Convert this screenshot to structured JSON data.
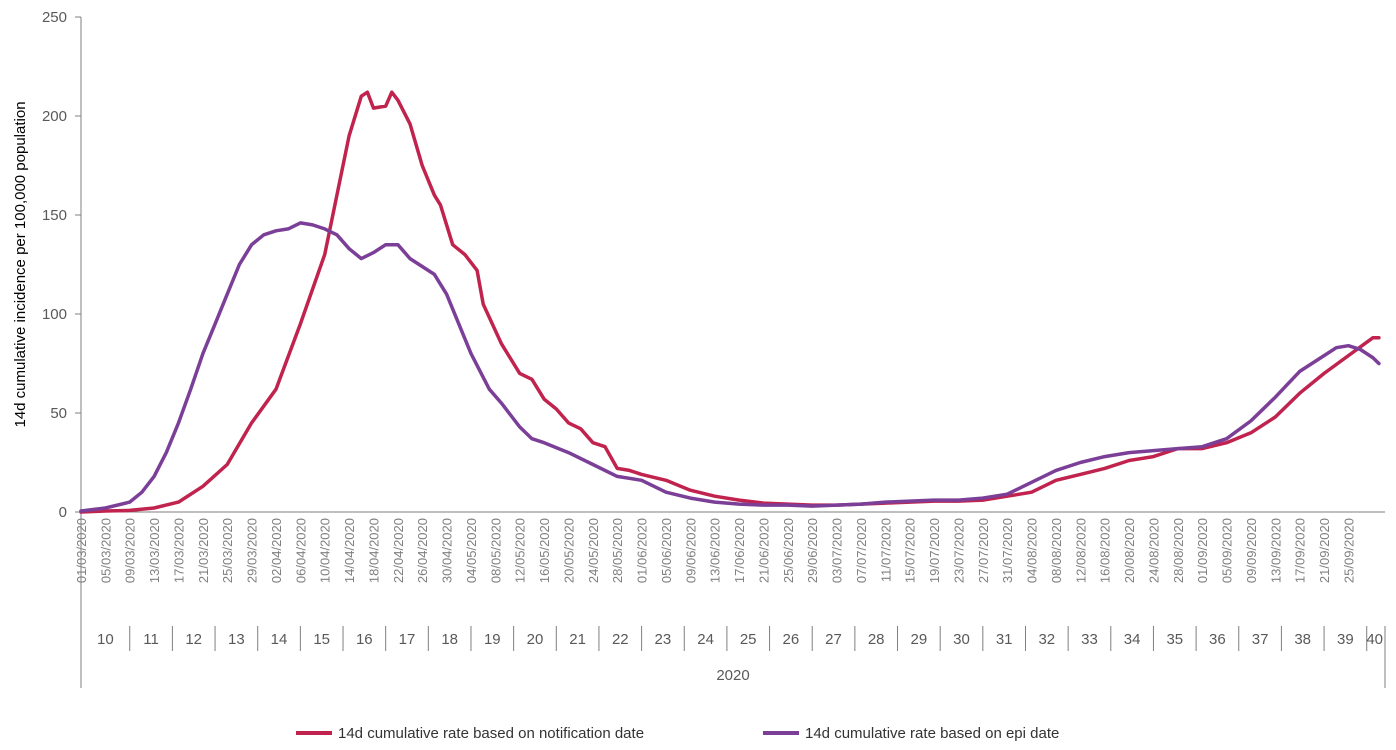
{
  "chart_data": {
    "type": "line",
    "title": "",
    "ylabel": "14d cumulative incidence per 100,000 population",
    "ylim": [
      0,
      250
    ],
    "yticks": [
      "0",
      "50",
      "100",
      "150",
      "200",
      "250"
    ],
    "date_labels": [
      "01/03/2020",
      "05/03/2020",
      "09/03/2020",
      "13/03/2020",
      "17/03/2020",
      "21/03/2020",
      "25/03/2020",
      "29/03/2020",
      "02/04/2020",
      "06/04/2020",
      "10/04/2020",
      "14/04/2020",
      "18/04/2020",
      "22/04/2020",
      "26/04/2020",
      "30/04/2020",
      "04/05/2020",
      "08/05/2020",
      "12/05/2020",
      "16/05/2020",
      "20/05/2020",
      "24/05/2020",
      "28/05/2020",
      "01/06/2020",
      "05/06/2020",
      "09/06/2020",
      "13/06/2020",
      "17/06/2020",
      "21/06/2020",
      "25/06/2020",
      "29/06/2020",
      "03/07/2020",
      "07/07/2020",
      "11/07/2020",
      "15/07/2020",
      "19/07/2020",
      "23/07/2020",
      "27/07/2020",
      "31/07/2020",
      "04/08/2020",
      "08/08/2020",
      "12/08/2020",
      "16/08/2020",
      "20/08/2020",
      "24/08/2020",
      "28/08/2020",
      "01/09/2020",
      "05/09/2020",
      "09/09/2020",
      "13/09/2020",
      "17/09/2020",
      "21/09/2020",
      "25/09/2020"
    ],
    "weeks": [
      "10",
      "11",
      "12",
      "13",
      "14",
      "15",
      "16",
      "17",
      "18",
      "19",
      "20",
      "21",
      "22",
      "23",
      "24",
      "25",
      "26",
      "27",
      "28",
      "29",
      "30",
      "31",
      "32",
      "33",
      "34",
      "35",
      "36",
      "37",
      "38",
      "39",
      "40"
    ],
    "year": "2020",
    "x_start": "01/03/2020",
    "x_end": "01/10/2020",
    "grid": false,
    "legend_position": "bottom",
    "series": [
      {
        "name": "14d cumulative rate based on notification date",
        "color": "#c0234e",
        "points": [
          [
            "01/03/2020",
            0
          ],
          [
            "05/03/2020",
            0.5
          ],
          [
            "09/03/2020",
            0.8
          ],
          [
            "13/03/2020",
            2
          ],
          [
            "17/03/2020",
            5
          ],
          [
            "21/03/2020",
            13
          ],
          [
            "25/03/2020",
            24
          ],
          [
            "29/03/2020",
            45
          ],
          [
            "02/04/2020",
            62
          ],
          [
            "06/04/2020",
            95
          ],
          [
            "10/04/2020",
            130
          ],
          [
            "12/04/2020",
            160
          ],
          [
            "14/04/2020",
            190
          ],
          [
            "16/04/2020",
            210
          ],
          [
            "17/04/2020",
            212
          ],
          [
            "18/04/2020",
            204
          ],
          [
            "20/04/2020",
            205
          ],
          [
            "21/04/2020",
            212
          ],
          [
            "22/04/2020",
            208
          ],
          [
            "24/04/2020",
            196
          ],
          [
            "26/04/2020",
            175
          ],
          [
            "28/04/2020",
            160
          ],
          [
            "29/04/2020",
            155
          ],
          [
            "01/05/2020",
            135
          ],
          [
            "03/05/2020",
            130
          ],
          [
            "05/05/2020",
            122
          ],
          [
            "06/05/2020",
            105
          ],
          [
            "09/05/2020",
            85
          ],
          [
            "12/05/2020",
            70
          ],
          [
            "14/05/2020",
            67
          ],
          [
            "16/05/2020",
            57
          ],
          [
            "18/05/2020",
            52
          ],
          [
            "20/05/2020",
            45
          ],
          [
            "22/05/2020",
            42
          ],
          [
            "24/05/2020",
            35
          ],
          [
            "26/05/2020",
            33
          ],
          [
            "28/05/2020",
            22
          ],
          [
            "30/05/2020",
            21
          ],
          [
            "01/06/2020",
            19
          ],
          [
            "05/06/2020",
            16
          ],
          [
            "09/06/2020",
            11
          ],
          [
            "13/06/2020",
            8
          ],
          [
            "17/06/2020",
            6
          ],
          [
            "21/06/2020",
            4.5
          ],
          [
            "25/06/2020",
            4
          ],
          [
            "29/06/2020",
            3.5
          ],
          [
            "03/07/2020",
            3.5
          ],
          [
            "07/07/2020",
            4
          ],
          [
            "11/07/2020",
            4.5
          ],
          [
            "15/07/2020",
            5
          ],
          [
            "19/07/2020",
            5.5
          ],
          [
            "23/07/2020",
            5.5
          ],
          [
            "27/07/2020",
            6
          ],
          [
            "31/07/2020",
            8
          ],
          [
            "04/08/2020",
            10
          ],
          [
            "08/08/2020",
            16
          ],
          [
            "12/08/2020",
            19
          ],
          [
            "16/08/2020",
            22
          ],
          [
            "20/08/2020",
            26
          ],
          [
            "24/08/2020",
            28
          ],
          [
            "28/08/2020",
            32
          ],
          [
            "01/09/2020",
            32
          ],
          [
            "05/09/2020",
            35
          ],
          [
            "09/09/2020",
            40
          ],
          [
            "13/09/2020",
            48
          ],
          [
            "17/09/2020",
            60
          ],
          [
            "21/09/2020",
            70
          ],
          [
            "25/09/2020",
            79
          ],
          [
            "29/09/2020",
            88
          ],
          [
            "30/09/2020",
            88
          ]
        ]
      },
      {
        "name": "14d cumulative rate based on epi date",
        "color": "#7b3f98",
        "points": [
          [
            "01/03/2020",
            0.5
          ],
          [
            "05/03/2020",
            2
          ],
          [
            "09/03/2020",
            5
          ],
          [
            "11/03/2020",
            10
          ],
          [
            "13/03/2020",
            18
          ],
          [
            "15/03/2020",
            30
          ],
          [
            "17/03/2020",
            45
          ],
          [
            "19/03/2020",
            62
          ],
          [
            "21/03/2020",
            80
          ],
          [
            "23/03/2020",
            95
          ],
          [
            "25/03/2020",
            110
          ],
          [
            "27/03/2020",
            125
          ],
          [
            "29/03/2020",
            135
          ],
          [
            "31/03/2020",
            140
          ],
          [
            "02/04/2020",
            142
          ],
          [
            "04/04/2020",
            143
          ],
          [
            "06/04/2020",
            146
          ],
          [
            "08/04/2020",
            145
          ],
          [
            "10/04/2020",
            143
          ],
          [
            "12/04/2020",
            140
          ],
          [
            "14/04/2020",
            133
          ],
          [
            "16/04/2020",
            128
          ],
          [
            "18/04/2020",
            131
          ],
          [
            "20/04/2020",
            135
          ],
          [
            "22/04/2020",
            135
          ],
          [
            "24/04/2020",
            128
          ],
          [
            "26/04/2020",
            124
          ],
          [
            "28/04/2020",
            120
          ],
          [
            "30/04/2020",
            110
          ],
          [
            "02/05/2020",
            95
          ],
          [
            "04/05/2020",
            80
          ],
          [
            "07/05/2020",
            62
          ],
          [
            "09/05/2020",
            55
          ],
          [
            "12/05/2020",
            43
          ],
          [
            "14/05/2020",
            37
          ],
          [
            "16/05/2020",
            35
          ],
          [
            "20/05/2020",
            30
          ],
          [
            "24/05/2020",
            24
          ],
          [
            "28/05/2020",
            18
          ],
          [
            "01/06/2020",
            16
          ],
          [
            "05/06/2020",
            10
          ],
          [
            "09/06/2020",
            7
          ],
          [
            "13/06/2020",
            5
          ],
          [
            "17/06/2020",
            4
          ],
          [
            "21/06/2020",
            3.5
          ],
          [
            "25/06/2020",
            3.5
          ],
          [
            "29/06/2020",
            3
          ],
          [
            "03/07/2020",
            3.5
          ],
          [
            "07/07/2020",
            4
          ],
          [
            "11/07/2020",
            5
          ],
          [
            "15/07/2020",
            5.5
          ],
          [
            "19/07/2020",
            6
          ],
          [
            "23/07/2020",
            6
          ],
          [
            "27/07/2020",
            7
          ],
          [
            "31/07/2020",
            9
          ],
          [
            "04/08/2020",
            15
          ],
          [
            "08/08/2020",
            21
          ],
          [
            "12/08/2020",
            25
          ],
          [
            "16/08/2020",
            28
          ],
          [
            "20/08/2020",
            30
          ],
          [
            "24/08/2020",
            31
          ],
          [
            "28/08/2020",
            32
          ],
          [
            "01/09/2020",
            33
          ],
          [
            "05/09/2020",
            37
          ],
          [
            "09/09/2020",
            46
          ],
          [
            "13/09/2020",
            58
          ],
          [
            "17/09/2020",
            71
          ],
          [
            "21/09/2020",
            79
          ],
          [
            "23/09/2020",
            83
          ],
          [
            "25/09/2020",
            84
          ],
          [
            "27/09/2020",
            82
          ],
          [
            "29/09/2020",
            78
          ],
          [
            "30/09/2020",
            75
          ]
        ]
      }
    ]
  }
}
